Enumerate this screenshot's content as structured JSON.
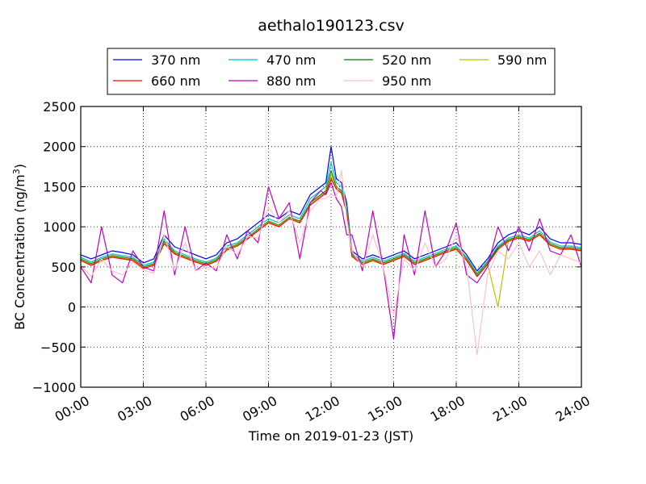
{
  "chart_data": {
    "type": "line",
    "title": "aethalo190123.csv",
    "xlabel": "Time on 2019-01-23 (JST)",
    "ylabel_main": "BC Concentration (ng/m",
    "ylabel_sup": "3",
    "ylabel_close": ")",
    "xlim": [
      0,
      24
    ],
    "ylim": [
      -1000,
      2500
    ],
    "x_ticks": [
      0,
      3,
      6,
      9,
      12,
      15,
      18,
      21,
      24
    ],
    "x_tick_labels": [
      "00:00",
      "03:00",
      "06:00",
      "09:00",
      "12:00",
      "15:00",
      "18:00",
      "21:00",
      "24:00"
    ],
    "y_ticks": [
      -1000,
      -500,
      0,
      500,
      1000,
      1500,
      2000,
      2500
    ],
    "y_tick_labels": [
      "−1000",
      "−500",
      "0",
      "500",
      "1000",
      "1500",
      "2000",
      "2500"
    ],
    "grid": true,
    "legend_position": "top",
    "x_unit": "hour of day",
    "x": [
      0.0,
      0.5,
      1.0,
      1.5,
      2.0,
      2.5,
      3.0,
      3.5,
      4.0,
      4.5,
      5.0,
      5.5,
      6.0,
      6.5,
      7.0,
      7.5,
      8.0,
      8.5,
      9.0,
      9.5,
      10.0,
      10.5,
      11.0,
      11.5,
      11.75,
      12.0,
      12.25,
      12.5,
      12.75,
      13.0,
      13.5,
      14.0,
      14.5,
      15.0,
      15.5,
      16.0,
      16.5,
      17.0,
      17.5,
      18.0,
      18.5,
      19.0,
      19.5,
      20.0,
      20.5,
      21.0,
      21.5,
      22.0,
      22.5,
      23.0,
      23.5,
      24.0
    ],
    "series": [
      {
        "name": "370 nm",
        "color": "#0000ff",
        "values": [
          650,
          600,
          650,
          700,
          680,
          650,
          550,
          600,
          900,
          750,
          700,
          650,
          600,
          650,
          800,
          850,
          950,
          1050,
          1150,
          1100,
          1200,
          1150,
          1400,
          1500,
          1550,
          2000,
          1600,
          1550,
          1300,
          700,
          600,
          650,
          600,
          650,
          700,
          600,
          650,
          700,
          750,
          800,
          650,
          450,
          600,
          800,
          900,
          950,
          900,
          1000,
          850,
          800,
          800,
          780
        ]
      },
      {
        "name": "470 nm",
        "color": "#00bfbf",
        "values": [
          620,
          560,
          620,
          660,
          640,
          620,
          520,
          560,
          850,
          700,
          650,
          600,
          560,
          610,
          760,
          800,
          900,
          1000,
          1100,
          1050,
          1150,
          1100,
          1350,
          1450,
          1500,
          1800,
          1550,
          1500,
          1250,
          670,
          570,
          620,
          570,
          620,
          670,
          570,
          620,
          670,
          720,
          760,
          620,
          420,
          570,
          760,
          860,
          900,
          860,
          950,
          810,
          760,
          760,
          740
        ]
      },
      {
        "name": "520 nm",
        "color": "#008000",
        "values": [
          600,
          540,
          600,
          640,
          620,
          600,
          500,
          540,
          820,
          680,
          630,
          580,
          540,
          590,
          730,
          780,
          870,
          970,
          1070,
          1020,
          1120,
          1070,
          1300,
          1400,
          1450,
          1700,
          1500,
          1450,
          1200,
          650,
          550,
          600,
          550,
          600,
          650,
          550,
          600,
          650,
          700,
          740,
          600,
          400,
          550,
          740,
          840,
          880,
          840,
          920,
          790,
          740,
          740,
          720
        ]
      },
      {
        "name": "590 nm",
        "color": "#bfbf00",
        "values": [
          590,
          530,
          590,
          630,
          610,
          590,
          490,
          530,
          800,
          670,
          620,
          570,
          530,
          580,
          720,
          770,
          860,
          960,
          1060,
          1010,
          1110,
          1060,
          1280,
          1380,
          1430,
          1650,
          1480,
          1430,
          1180,
          640,
          540,
          590,
          540,
          590,
          640,
          540,
          590,
          640,
          690,
          730,
          590,
          390,
          540,
          0,
          830,
          870,
          830,
          910,
          780,
          730,
          730,
          710
        ]
      },
      {
        "name": "660 nm",
        "color": "#ff0000",
        "values": [
          580,
          520,
          580,
          620,
          600,
          580,
          480,
          520,
          790,
          660,
          610,
          560,
          520,
          570,
          710,
          760,
          850,
          950,
          1050,
          1000,
          1100,
          1050,
          1270,
          1370,
          1420,
          1600,
          1470,
          1420,
          1170,
          630,
          530,
          580,
          530,
          580,
          630,
          530,
          580,
          630,
          680,
          720,
          580,
          380,
          530,
          720,
          820,
          860,
          820,
          900,
          770,
          720,
          720,
          700
        ]
      },
      {
        "name": "880 nm",
        "color": "#bf00bf",
        "values": [
          500,
          300,
          1000,
          400,
          300,
          700,
          500,
          450,
          1200,
          400,
          1000,
          450,
          550,
          450,
          900,
          600,
          950,
          800,
          1500,
          1100,
          1300,
          600,
          1300,
          1450,
          1400,
          1550,
          1350,
          1250,
          900,
          900,
          450,
          1200,
          500,
          -400,
          900,
          400,
          1200,
          500,
          700,
          1050,
          400,
          300,
          500,
          1000,
          700,
          1000,
          700,
          1100,
          700,
          650,
          900,
          500
        ]
      },
      {
        "name": "950 nm",
        "color": "#ffc0cb",
        "values": [
          520,
          380,
          600,
          450,
          400,
          560,
          460,
          420,
          900,
          450,
          800,
          450,
          500,
          480,
          760,
          650,
          880,
          860,
          1250,
          1050,
          1200,
          800,
          1200,
          1350,
          1350,
          1400,
          1380,
          1700,
          1100,
          700,
          500,
          900,
          500,
          -100,
          600,
          450,
          800,
          500,
          600,
          900,
          500,
          -600,
          400,
          700,
          600,
          800,
          500,
          700,
          400,
          650,
          600,
          550
        ]
      }
    ]
  }
}
